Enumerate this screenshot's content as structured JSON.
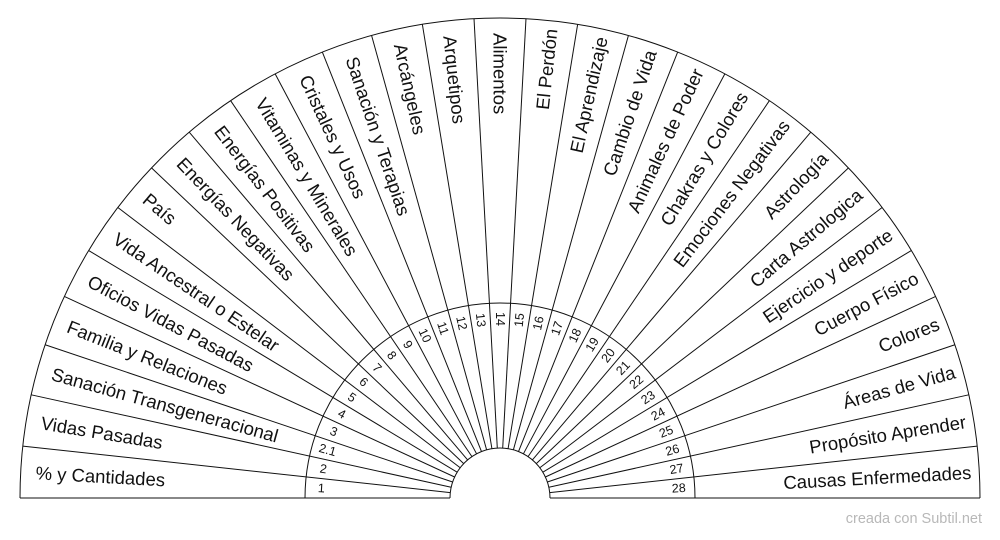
{
  "sections": [
    {
      "number": "1",
      "label": "% y  Cantidades"
    },
    {
      "number": "2",
      "label": "Vidas Pasadas"
    },
    {
      "number": "2.1",
      "label": "Sanación Transgeneracional"
    },
    {
      "number": "3",
      "label": "Familia y Relaciones"
    },
    {
      "number": "4",
      "label": "Oficios Vidas Pasadas"
    },
    {
      "number": "5",
      "label": "Vida Ancestral o Estelar"
    },
    {
      "number": "6",
      "label": "País"
    },
    {
      "number": "7",
      "label": "Energías Negativas"
    },
    {
      "number": "8",
      "label": "Energías Positivas"
    },
    {
      "number": "9",
      "label": "Vitaminas y Minerales"
    },
    {
      "number": "10",
      "label": "Cristales y Usos"
    },
    {
      "number": "11",
      "label": "Sanación y Terapias"
    },
    {
      "number": "12",
      "label": "Arcángeles"
    },
    {
      "number": "13",
      "label": "Arquetipos"
    },
    {
      "number": "14",
      "label": "Alimentos"
    },
    {
      "number": "15",
      "label": "El Perdón"
    },
    {
      "number": "16",
      "label": "El Aprendizaje"
    },
    {
      "number": "17",
      "label": "Cambio de Vida"
    },
    {
      "number": "18",
      "label": "Animales de Poder"
    },
    {
      "number": "19",
      "label": "Chakras y Colores"
    },
    {
      "number": "20",
      "label": "Emociones Negativas"
    },
    {
      "number": "21",
      "label": "Astrología"
    },
    {
      "number": "22",
      "label": "Carta Astrologica"
    },
    {
      "number": "23",
      "label": "Ejercicio y deporte"
    },
    {
      "number": "24",
      "label": "Cuerpo Físico"
    },
    {
      "number": "25",
      "label": "Colores"
    },
    {
      "number": "26",
      "label": "Áreas de Vida"
    },
    {
      "number": "27",
      "label": "Propósito Aprender"
    },
    {
      "number": "28",
      "label": "Causas Enfermedades"
    }
  ],
  "credit": "creada con Subtil.net"
}
